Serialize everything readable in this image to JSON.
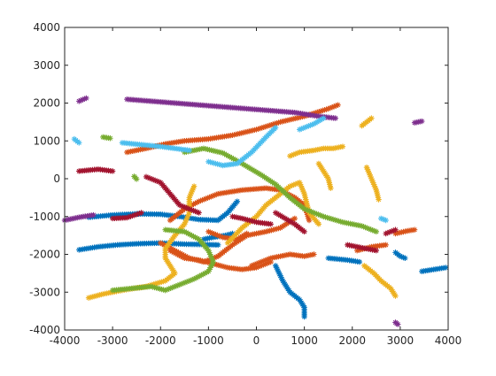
{
  "chart_data": {
    "type": "scatter",
    "title": "",
    "xlabel": "",
    "ylabel": "",
    "xlim": [
      -4000,
      4000
    ],
    "ylim": [
      -4000,
      4000
    ],
    "xticks": [
      -4000,
      -3000,
      -2000,
      -1000,
      0,
      1000,
      2000,
      3000,
      4000
    ],
    "yticks": [
      -4000,
      -3000,
      -2000,
      -1000,
      0,
      1000,
      2000,
      3000,
      4000
    ],
    "xtick_labels": [
      "-4000",
      "-3000",
      "-2000",
      "-1000",
      "0",
      "1000",
      "2000",
      "3000",
      "4000"
    ],
    "ytick_labels": [
      "-4000",
      "-3000",
      "-2000",
      "-1000",
      "0",
      "1000",
      "2000",
      "3000",
      "4000"
    ],
    "grid": false,
    "marker": "asterisk",
    "series": [
      {
        "color": "#0072bd",
        "points": [
          [
            -3700,
            -1880
          ],
          [
            -3300,
            -1800
          ],
          [
            -2900,
            -1750
          ],
          [
            -2500,
            -1720
          ],
          [
            -2000,
            -1700
          ],
          [
            -1500,
            -1730
          ],
          [
            -1100,
            -1740
          ],
          [
            -800,
            -1750
          ]
        ]
      },
      {
        "color": "#0072bd",
        "points": [
          [
            -3500,
            -1020
          ],
          [
            -3000,
            -960
          ],
          [
            -2500,
            -930
          ],
          [
            -2000,
            -940
          ],
          [
            -1600,
            -1000
          ],
          [
            -1200,
            -1080
          ],
          [
            -800,
            -1100
          ],
          [
            -600,
            -900
          ],
          [
            -400,
            -600
          ]
        ]
      },
      {
        "color": "#0072bd",
        "points": [
          [
            400,
            -2300
          ],
          [
            550,
            -2700
          ],
          [
            700,
            -3000
          ],
          [
            900,
            -3200
          ],
          [
            1000,
            -3400
          ],
          [
            1000,
            -3650
          ]
        ]
      },
      {
        "color": "#0072bd",
        "points": [
          [
            1500,
            -2100
          ],
          [
            1900,
            -2150
          ],
          [
            2150,
            -2200
          ]
        ]
      },
      {
        "color": "#0072bd",
        "points": [
          [
            2900,
            -1950
          ],
          [
            3000,
            -2050
          ],
          [
            3100,
            -2100
          ]
        ]
      },
      {
        "color": "#0072bd",
        "points": [
          [
            3450,
            -2450
          ],
          [
            3700,
            -2400
          ],
          [
            3950,
            -2350
          ]
        ]
      },
      {
        "color": "#0072bd",
        "points": [
          [
            -1100,
            -1600
          ],
          [
            -900,
            -1550
          ],
          [
            -650,
            -1500
          ],
          [
            -500,
            -1450
          ]
        ]
      },
      {
        "color": "#d95319",
        "points": [
          [
            -2700,
            700
          ],
          [
            -2300,
            800
          ],
          [
            -1900,
            920
          ],
          [
            -1500,
            1000
          ],
          [
            -1000,
            1050
          ],
          [
            -500,
            1150
          ],
          [
            0,
            1300
          ],
          [
            500,
            1500
          ],
          [
            1000,
            1650
          ],
          [
            1500,
            1850
          ],
          [
            1700,
            1950
          ]
        ]
      },
      {
        "color": "#d95319",
        "points": [
          [
            -1800,
            -1100
          ],
          [
            -1500,
            -800
          ],
          [
            -1200,
            -600
          ],
          [
            -800,
            -400
          ],
          [
            -300,
            -300
          ],
          [
            200,
            -250
          ],
          [
            500,
            -300
          ],
          [
            800,
            -500
          ],
          [
            1000,
            -700
          ],
          [
            1100,
            -1100
          ]
        ]
      },
      {
        "color": "#d95319",
        "points": [
          [
            -2000,
            -1700
          ],
          [
            -1700,
            -1900
          ],
          [
            -1400,
            -2100
          ],
          [
            -1100,
            -2200
          ],
          [
            -800,
            -2050
          ],
          [
            -500,
            -1750
          ],
          [
            -200,
            -1500
          ],
          [
            200,
            -1400
          ],
          [
            500,
            -1300
          ],
          [
            800,
            -1050
          ]
        ]
      },
      {
        "color": "#d95319",
        "points": [
          [
            -100,
            -2300
          ],
          [
            300,
            -2100
          ],
          [
            700,
            -2000
          ],
          [
            1000,
            -2050
          ],
          [
            1200,
            -2000
          ]
        ]
      },
      {
        "color": "#d95319",
        "points": [
          [
            -1000,
            -1400
          ],
          [
            -700,
            -1550
          ],
          [
            -400,
            -1600
          ],
          [
            -200,
            -1450
          ]
        ]
      },
      {
        "color": "#d95319",
        "points": [
          [
            -1800,
            -1900
          ],
          [
            -1500,
            -2100
          ],
          [
            -1200,
            -2150
          ],
          [
            -900,
            -2250
          ],
          [
            -600,
            -2350
          ],
          [
            -300,
            -2400
          ],
          [
            0,
            -2350
          ],
          [
            300,
            -2200
          ]
        ]
      },
      {
        "color": "#d95319",
        "points": [
          [
            2100,
            -1900
          ],
          [
            2400,
            -1800
          ],
          [
            2700,
            -1750
          ]
        ]
      },
      {
        "color": "#d95319",
        "points": [
          [
            2900,
            -1450
          ],
          [
            3150,
            -1380
          ],
          [
            3300,
            -1350
          ]
        ]
      },
      {
        "color": "#edb120",
        "points": [
          [
            -3500,
            -3150
          ],
          [
            -3200,
            -3050
          ],
          [
            -2800,
            -2950
          ],
          [
            -2300,
            -2850
          ],
          [
            -1900,
            -2700
          ],
          [
            -1700,
            -2500
          ],
          [
            -1800,
            -2300
          ],
          [
            -1900,
            -2100
          ],
          [
            -1900,
            -1850
          ],
          [
            -1700,
            -1500
          ],
          [
            -1500,
            -1200
          ],
          [
            -1400,
            -900
          ],
          [
            -1400,
            -500
          ],
          [
            -1300,
            -200
          ]
        ]
      },
      {
        "color": "#edb120",
        "points": [
          [
            -600,
            -1700
          ],
          [
            -300,
            -1300
          ],
          [
            0,
            -1000
          ],
          [
            200,
            -700
          ],
          [
            500,
            -400
          ],
          [
            700,
            -200
          ],
          [
            900,
            -100
          ],
          [
            1000,
            -400
          ],
          [
            1100,
            -900
          ],
          [
            1300,
            -1200
          ]
        ]
      },
      {
        "color": "#edb120",
        "points": [
          [
            700,
            600
          ],
          [
            900,
            700
          ],
          [
            1200,
            750
          ],
          [
            1400,
            800
          ],
          [
            1600,
            800
          ],
          [
            1800,
            850
          ]
        ]
      },
      {
        "color": "#edb120",
        "points": [
          [
            1300,
            400
          ],
          [
            1400,
            200
          ],
          [
            1500,
            0
          ],
          [
            1550,
            -250
          ]
        ]
      },
      {
        "color": "#edb120",
        "points": [
          [
            2200,
            1400
          ],
          [
            2300,
            1500
          ],
          [
            2400,
            1600
          ]
        ]
      },
      {
        "color": "#edb120",
        "points": [
          [
            2300,
            300
          ],
          [
            2400,
            0
          ],
          [
            2500,
            -300
          ],
          [
            2550,
            -550
          ]
        ]
      },
      {
        "color": "#edb120",
        "points": [
          [
            2250,
            -2300
          ],
          [
            2450,
            -2500
          ],
          [
            2600,
            -2700
          ],
          [
            2800,
            -2900
          ],
          [
            2900,
            -3100
          ]
        ]
      },
      {
        "color": "#7e2f8e",
        "points": [
          [
            -2700,
            2100
          ],
          [
            -2200,
            2050
          ],
          [
            -1700,
            2000
          ],
          [
            -1200,
            1950
          ],
          [
            -700,
            1900
          ],
          [
            -200,
            1850
          ],
          [
            300,
            1800
          ],
          [
            800,
            1750
          ],
          [
            1300,
            1650
          ],
          [
            1650,
            1600
          ]
        ]
      },
      {
        "color": "#7e2f8e",
        "points": [
          [
            -3700,
            2050
          ],
          [
            -3550,
            2130
          ]
        ]
      },
      {
        "color": "#7e2f8e",
        "points": [
          [
            -4000,
            -1100
          ],
          [
            -3700,
            -1020
          ],
          [
            -3400,
            -960
          ]
        ]
      },
      {
        "color": "#7e2f8e",
        "points": [
          [
            3300,
            1480
          ],
          [
            3450,
            1520
          ]
        ]
      },
      {
        "color": "#7e2f8e",
        "points": [
          [
            2900,
            -3800
          ],
          [
            2950,
            -3850
          ]
        ]
      },
      {
        "color": "#77ac30",
        "points": [
          [
            -3000,
            -2950
          ],
          [
            -2600,
            -2900
          ],
          [
            -2200,
            -2850
          ],
          [
            -1900,
            -2950
          ],
          [
            -1600,
            -2800
          ],
          [
            -1300,
            -2650
          ],
          [
            -1000,
            -2450
          ],
          [
            -900,
            -2200
          ],
          [
            -1000,
            -1900
          ],
          [
            -1200,
            -1600
          ],
          [
            -1500,
            -1400
          ],
          [
            -1900,
            -1350
          ]
        ]
      },
      {
        "color": "#77ac30",
        "points": [
          [
            -1500,
            700
          ],
          [
            -1100,
            800
          ],
          [
            -700,
            680
          ],
          [
            -300,
            400
          ],
          [
            100,
            100
          ],
          [
            400,
            -150
          ],
          [
            700,
            -500
          ],
          [
            1000,
            -800
          ],
          [
            1400,
            -1000
          ],
          [
            1800,
            -1150
          ],
          [
            2200,
            -1250
          ],
          [
            2500,
            -1400
          ]
        ]
      },
      {
        "color": "#77ac30",
        "points": [
          [
            -3200,
            1100
          ],
          [
            -3050,
            1070
          ]
        ]
      },
      {
        "color": "#77ac30",
        "points": [
          [
            -2500,
            -10
          ],
          [
            -2550,
            60
          ]
        ]
      },
      {
        "color": "#a2142f",
        "points": [
          [
            -3700,
            200
          ],
          [
            -3300,
            250
          ],
          [
            -3000,
            200
          ]
        ]
      },
      {
        "color": "#a2142f",
        "points": [
          [
            -3000,
            -1050
          ],
          [
            -2700,
            -1030
          ],
          [
            -2400,
            -900
          ]
        ]
      },
      {
        "color": "#a2142f",
        "points": [
          [
            -2300,
            50
          ],
          [
            -2000,
            -100
          ],
          [
            -1800,
            -400
          ],
          [
            -1600,
            -700
          ],
          [
            -1200,
            -900
          ]
        ]
      },
      {
        "color": "#a2142f",
        "points": [
          [
            -500,
            -1000
          ],
          [
            -300,
            -1050
          ],
          [
            0,
            -1150
          ],
          [
            300,
            -1200
          ]
        ]
      },
      {
        "color": "#a2142f",
        "points": [
          [
            400,
            -900
          ],
          [
            600,
            -1050
          ],
          [
            800,
            -1200
          ],
          [
            1000,
            -1400
          ]
        ]
      },
      {
        "color": "#a2142f",
        "points": [
          [
            1900,
            -1750
          ],
          [
            2100,
            -1800
          ],
          [
            2300,
            -1850
          ],
          [
            2500,
            -1900
          ]
        ]
      },
      {
        "color": "#a2142f",
        "points": [
          [
            2700,
            -1450
          ],
          [
            2900,
            -1350
          ]
        ]
      },
      {
        "color": "#4dbeee",
        "points": [
          [
            -2800,
            950
          ],
          [
            -2400,
            900
          ],
          [
            -2000,
            850
          ],
          [
            -1700,
            800
          ],
          [
            -1400,
            750
          ]
        ]
      },
      {
        "color": "#4dbeee",
        "points": [
          [
            -1000,
            450
          ],
          [
            -700,
            350
          ],
          [
            -400,
            400
          ],
          [
            -100,
            700
          ],
          [
            200,
            1100
          ],
          [
            400,
            1350
          ]
        ]
      },
      {
        "color": "#4dbeee",
        "points": [
          [
            900,
            1300
          ],
          [
            1200,
            1450
          ],
          [
            1400,
            1600
          ]
        ]
      },
      {
        "color": "#4dbeee",
        "points": [
          [
            -3800,
            1050
          ],
          [
            -3700,
            950
          ]
        ]
      },
      {
        "color": "#4dbeee",
        "points": [
          [
            2600,
            -1050
          ],
          [
            2700,
            -1100
          ]
        ]
      }
    ]
  }
}
